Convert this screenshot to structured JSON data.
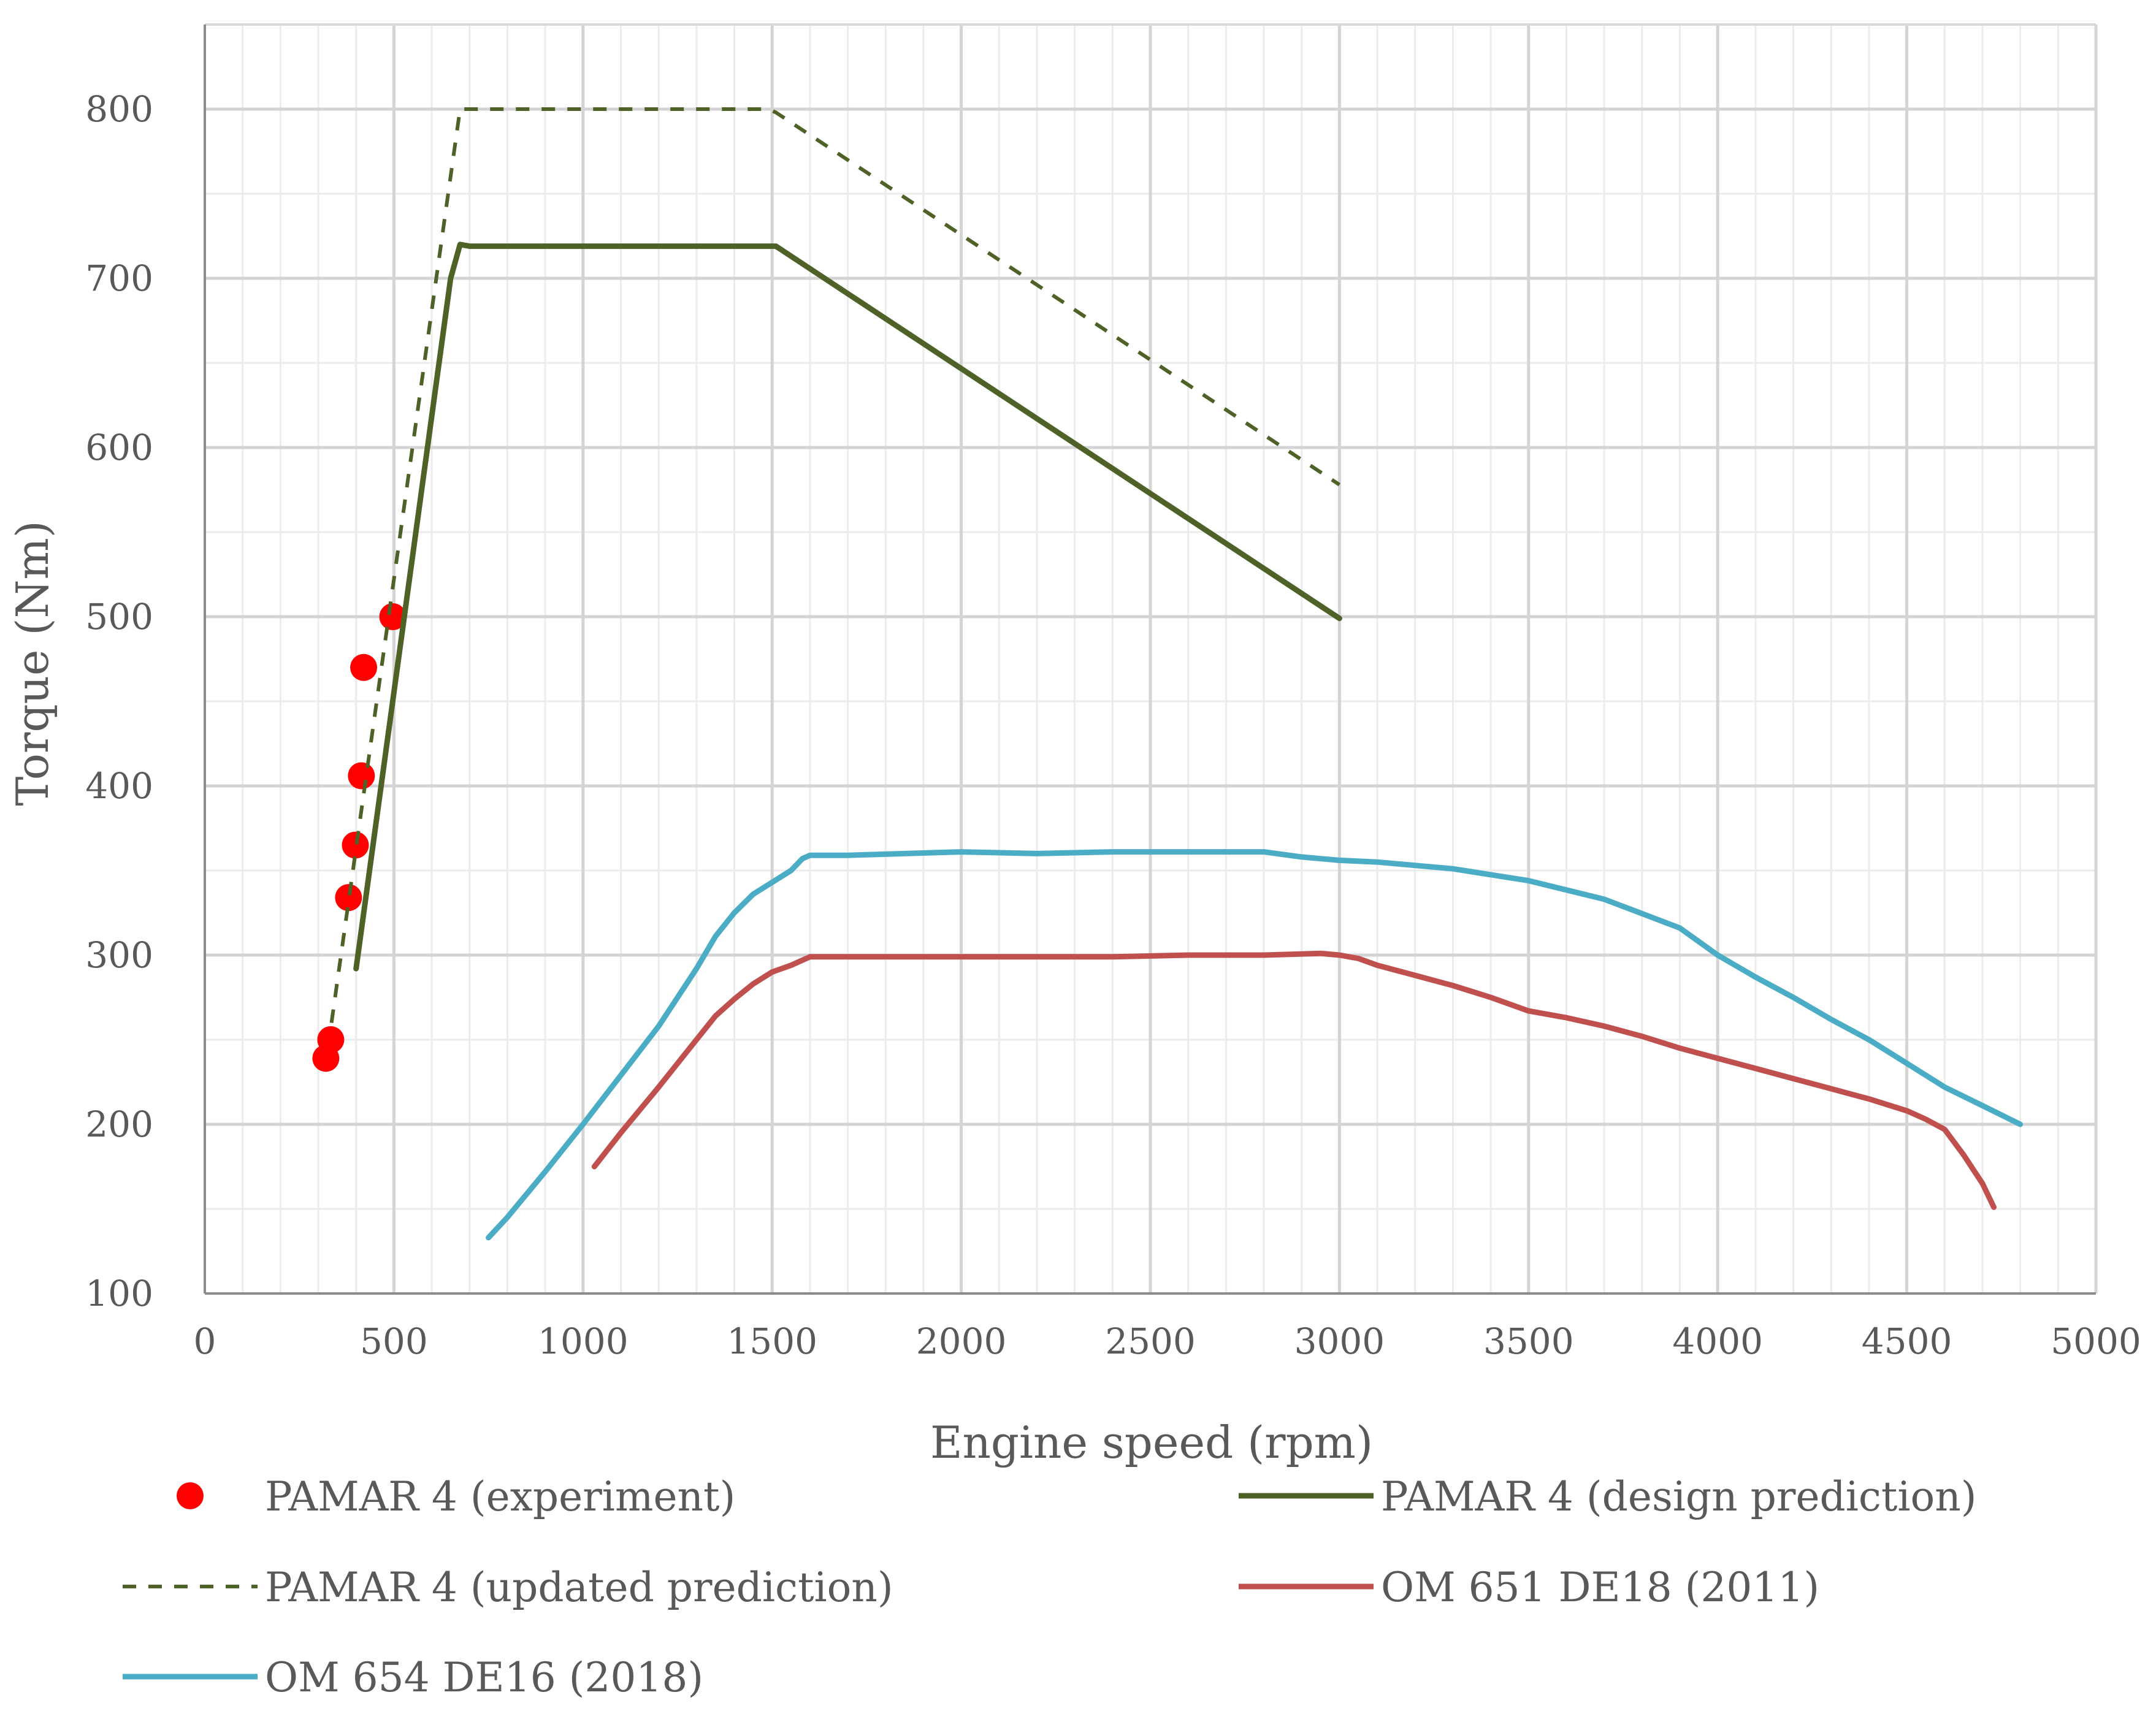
{
  "chart_data": {
    "type": "line",
    "title": "",
    "xlabel": "Engine speed (rpm)",
    "ylabel": "Torque (Nm)",
    "xlim": [
      0,
      5000
    ],
    "ylim": [
      100,
      850
    ],
    "x_ticks": [
      0,
      500,
      1000,
      1500,
      2000,
      2500,
      3000,
      3500,
      4000,
      4500,
      5000
    ],
    "y_ticks": [
      100,
      200,
      300,
      400,
      500,
      600,
      700,
      800
    ],
    "grid": true,
    "legend_position": "bottom",
    "series": [
      {
        "name": "PAMAR 4 (experiment)",
        "kind": "scatter",
        "color": "#ff0000",
        "x": [
          320,
          333,
          380,
          398,
          414,
          420,
          497
        ],
        "y": [
          239,
          250,
          334,
          365,
          406,
          470,
          500
        ]
      },
      {
        "name": "PAMAR 4 (design prediction)",
        "kind": "line",
        "style": "solid",
        "color": "#4e6228",
        "x": [
          400,
          650,
          675,
          700,
          1000,
          1490,
          1510,
          3000
        ],
        "y": [
          292,
          700,
          720,
          719,
          719,
          719,
          719,
          499
        ]
      },
      {
        "name": "PAMAR 4 (updated prediction)",
        "kind": "line",
        "style": "dashed",
        "color": "#4e6228",
        "x": [
          335,
          675,
          700,
          1490,
          1510,
          3000
        ],
        "y": [
          260,
          800,
          800,
          800,
          798,
          578
        ]
      },
      {
        "name": "OM 651 DE18 (2011)",
        "kind": "line",
        "style": "solid",
        "color": "#c0504d",
        "x": [
          1030,
          1100,
          1200,
          1300,
          1350,
          1400,
          1450,
          1500,
          1550,
          1600,
          1700,
          1800,
          2000,
          2200,
          2400,
          2600,
          2800,
          2950,
          3000,
          3050,
          3100,
          3200,
          3300,
          3400,
          3500,
          3600,
          3700,
          3800,
          3900,
          4000,
          4100,
          4200,
          4300,
          4400,
          4500,
          4550,
          4600,
          4650,
          4700,
          4730
        ],
        "y": [
          175,
          195,
          222,
          250,
          264,
          274,
          283,
          290,
          294,
          299,
          299,
          299,
          299,
          299,
          299,
          300,
          300,
          301,
          300,
          298,
          294,
          288,
          282,
          275,
          267,
          263,
          258,
          252,
          245,
          239,
          233,
          227,
          221,
          215,
          208,
          203,
          197,
          182,
          165,
          151
        ]
      },
      {
        "name": "OM 654 DE16 (2018)",
        "kind": "line",
        "style": "solid",
        "color": "#4bacc6",
        "x": [
          750,
          800,
          900,
          1000,
          1100,
          1200,
          1300,
          1350,
          1400,
          1450,
          1500,
          1550,
          1580,
          1600,
          1700,
          2000,
          2200,
          2400,
          2600,
          2800,
          2900,
          3000,
          3100,
          3300,
          3500,
          3700,
          3900,
          4000,
          4100,
          4200,
          4300,
          4400,
          4500,
          4600,
          4700,
          4800
        ],
        "y": [
          133,
          145,
          172,
          200,
          229,
          258,
          292,
          311,
          325,
          336,
          343,
          350,
          357,
          359,
          359,
          361,
          360,
          361,
          361,
          361,
          358,
          356,
          355,
          351,
          344,
          333,
          316,
          300,
          287,
          275,
          262,
          250,
          236,
          222,
          211,
          200
        ]
      }
    ]
  }
}
